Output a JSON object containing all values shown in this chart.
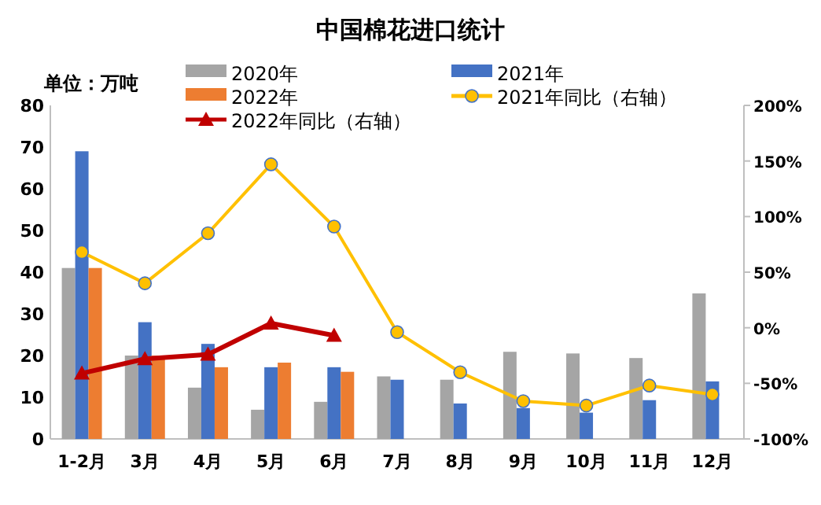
{
  "chart_data": {
    "type": "bar",
    "title": "中国棉花进口统计",
    "annotations": [
      "单位：万吨"
    ],
    "categories": [
      "1-2月",
      "3月",
      "4月",
      "5月",
      "6月",
      "7月",
      "8月",
      "9月",
      "10月",
      "11月",
      "12月"
    ],
    "series": [
      {
        "name": "2020年",
        "color": "#a5a5a5",
        "values": [
          41,
          20,
          12.3,
          7,
          8.9,
          15,
          14.2,
          20.9,
          20.5,
          19.4,
          34.9
        ]
      },
      {
        "name": "2021年",
        "color": "#4472c4",
        "values": [
          69,
          28,
          22.8,
          17.2,
          17.2,
          14.2,
          8.5,
          7.4,
          6.3,
          9.3,
          13.8
        ]
      },
      {
        "name": "2022年",
        "color": "#ed7d31",
        "values": [
          41,
          20,
          17.2,
          18.3,
          16.1,
          null,
          null,
          null,
          null,
          null,
          null
        ]
      },
      {
        "name": "2021年同比（右轴）",
        "type": "line",
        "axis": "y2",
        "marker": "circle",
        "color": "#ffc000",
        "values": [
          68,
          40,
          85,
          147,
          91,
          -4,
          -40,
          -66,
          -70,
          -52,
          -60
        ]
      },
      {
        "name": "2022年同比（右轴）",
        "type": "line",
        "axis": "y2",
        "marker": "triangle",
        "color": "#c00000",
        "values": [
          -41,
          -28,
          -24,
          4,
          -7,
          null,
          null,
          null,
          null,
          null,
          null
        ]
      }
    ],
    "ylim": [
      0,
      80
    ],
    "yticks": [
      0,
      10,
      20,
      30,
      40,
      50,
      60,
      70,
      80
    ],
    "y2lim": [
      -100,
      200
    ],
    "y2ticks": [
      {
        "value": -100,
        "label": "-100%"
      },
      {
        "value": -50,
        "label": "-50%"
      },
      {
        "value": 0,
        "label": "0%"
      },
      {
        "value": 50,
        "label": "50%"
      },
      {
        "value": 100,
        "label": "100%"
      },
      {
        "value": 150,
        "label": "150%"
      },
      {
        "value": 200,
        "label": "200%"
      }
    ],
    "legend": "top",
    "grid": false
  }
}
